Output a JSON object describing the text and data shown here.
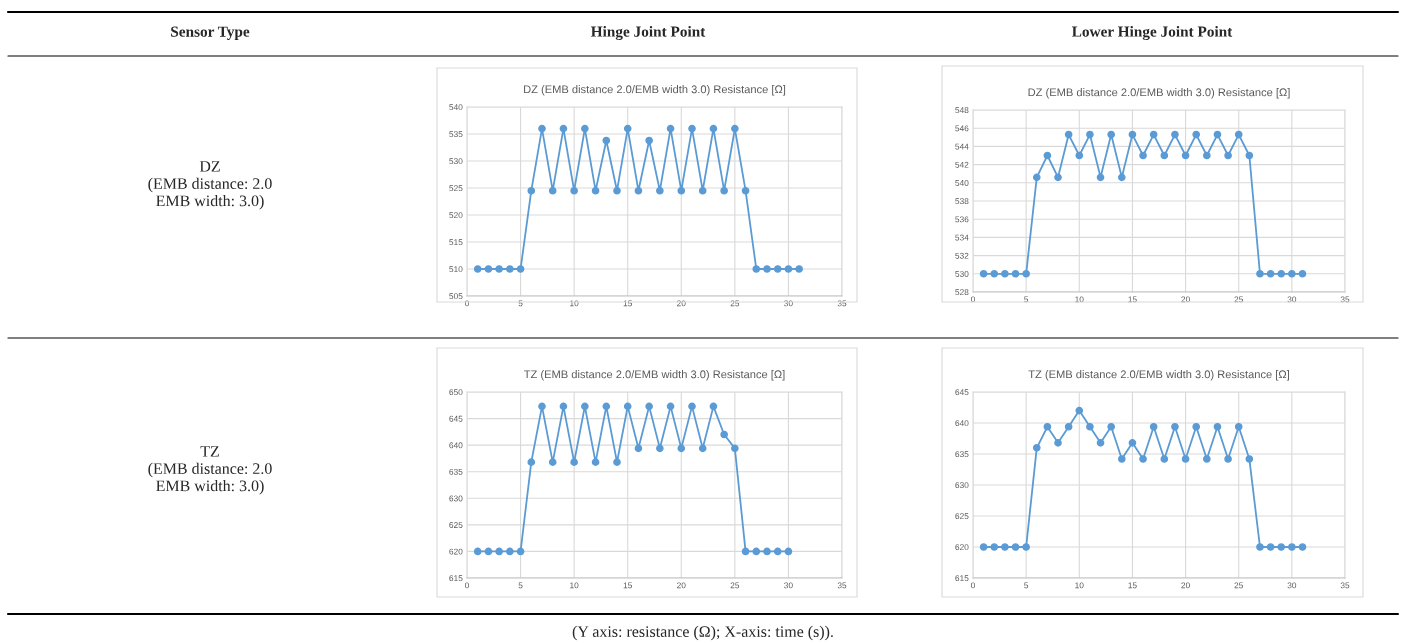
{
  "chart_data": [
    {
      "type": "line",
      "title": "DZ (EMB distance 2.0/EMB width 3.0) Resistance [Ω]",
      "x": [
        1,
        2,
        3,
        4,
        5,
        6,
        7,
        8,
        9,
        10,
        11,
        12,
        13,
        14,
        15,
        16,
        17,
        18,
        19,
        20,
        21,
        22,
        23,
        24,
        25,
        26,
        27,
        28,
        29,
        30,
        31
      ],
      "series": [
        {
          "color": "#5b9bd5",
          "values": [
            510,
            510,
            510,
            510,
            510,
            524.5,
            536,
            524.5,
            536,
            524.5,
            536,
            524.5,
            533.8,
            524.5,
            536,
            524.5,
            533.8,
            524.5,
            536,
            524.5,
            536,
            524.5,
            536,
            524.5,
            536,
            524.5,
            510,
            510,
            510,
            510,
            510
          ]
        }
      ],
      "xlim": [
        0,
        35
      ],
      "xticks": [
        0,
        5,
        10,
        15,
        20,
        25,
        30,
        35
      ],
      "ylim": [
        505,
        540
      ],
      "yticks": [
        505,
        510,
        515,
        520,
        525,
        530,
        535,
        540
      ],
      "grid": true,
      "marker": "circle",
      "line_style": "solid",
      "annotations": [
        "Sensor Type",
        "Hinge Joint Point",
        "DZ\n(EMB distance: 2.0\nEMB width: 3.0)"
      ]
    },
    {
      "type": "line",
      "title": "DZ (EMB distance 2.0/EMB width 3.0) Resistance [Ω]",
      "x": [
        1,
        2,
        3,
        4,
        5,
        6,
        7,
        8,
        9,
        10,
        11,
        12,
        13,
        14,
        15,
        16,
        17,
        18,
        19,
        20,
        21,
        22,
        23,
        24,
        25,
        26,
        27,
        28,
        29,
        30,
        31
      ],
      "series": [
        {
          "color": "#5b9bd5",
          "values": [
            530,
            530,
            530,
            530,
            530,
            540.6,
            543,
            540.6,
            545.3,
            543,
            545.3,
            540.6,
            545.3,
            540.6,
            545.3,
            543,
            545.3,
            543,
            545.3,
            543,
            545.3,
            543,
            545.3,
            543,
            545.3,
            543,
            530,
            530,
            530,
            530,
            530
          ]
        }
      ],
      "xlim": [
        0,
        35
      ],
      "xticks": [
        0,
        5,
        10,
        15,
        20,
        25,
        30,
        35
      ],
      "ylim": [
        528,
        548
      ],
      "yticks": [
        528,
        530,
        532,
        534,
        536,
        538,
        540,
        542,
        544,
        546,
        548
      ],
      "grid": true,
      "marker": "circle",
      "line_style": "solid",
      "annotations": [
        "Lower Hinge Joint Point"
      ]
    },
    {
      "type": "line",
      "title": "TZ (EMB distance 2.0/EMB width 3.0) Resistance [Ω]",
      "x": [
        1,
        2,
        3,
        4,
        5,
        6,
        7,
        8,
        9,
        10,
        11,
        12,
        13,
        14,
        15,
        16,
        17,
        18,
        19,
        20,
        21,
        22,
        23,
        24,
        25,
        26,
        27,
        28,
        29,
        30
      ],
      "series": [
        {
          "color": "#5b9bd5",
          "values": [
            620,
            620,
            620,
            620,
            620,
            636.8,
            647.3,
            636.8,
            647.3,
            636.8,
            647.3,
            636.8,
            647.3,
            636.8,
            647.3,
            639.4,
            647.3,
            639.4,
            647.3,
            639.4,
            647.3,
            639.4,
            647.3,
            642,
            639.4,
            620,
            620,
            620,
            620,
            620
          ]
        }
      ],
      "xlim": [
        0,
        35
      ],
      "xticks": [
        0,
        5,
        10,
        15,
        20,
        25,
        30,
        35
      ],
      "ylim": [
        615,
        650
      ],
      "yticks": [
        615,
        620,
        625,
        630,
        635,
        640,
        645,
        650
      ],
      "grid": true,
      "marker": "circle",
      "line_style": "solid",
      "annotations": [
        "TZ\n(EMB distance: 2.0\nEMB width: 3.0)",
        "(Y axis: resistance (Ω); X-axis: time (s))."
      ]
    },
    {
      "type": "line",
      "title": "TZ (EMB distance 2.0/EMB width 3.0) Resistance [Ω]",
      "x": [
        1,
        2,
        3,
        4,
        5,
        6,
        7,
        8,
        9,
        10,
        11,
        12,
        13,
        14,
        15,
        16,
        17,
        18,
        19,
        20,
        21,
        22,
        23,
        24,
        25,
        26,
        27,
        28,
        29,
        30,
        31
      ],
      "series": [
        {
          "color": "#5b9bd5",
          "values": [
            620,
            620,
            620,
            620,
            620,
            636,
            639.4,
            636.8,
            639.4,
            642,
            639.4,
            636.8,
            639.4,
            634.2,
            636.8,
            634.2,
            639.4,
            634.2,
            639.4,
            634.2,
            639.4,
            634.2,
            639.4,
            634.2,
            639.4,
            634.2,
            620,
            620,
            620,
            620,
            620
          ]
        }
      ],
      "xlim": [
        0,
        35
      ],
      "xticks": [
        0,
        5,
        10,
        15,
        20,
        25,
        30,
        35
      ],
      "ylim": [
        615,
        645
      ],
      "yticks": [
        615,
        620,
        625,
        630,
        635,
        640,
        645
      ],
      "grid": true,
      "marker": "circle",
      "line_style": "solid"
    }
  ]
}
